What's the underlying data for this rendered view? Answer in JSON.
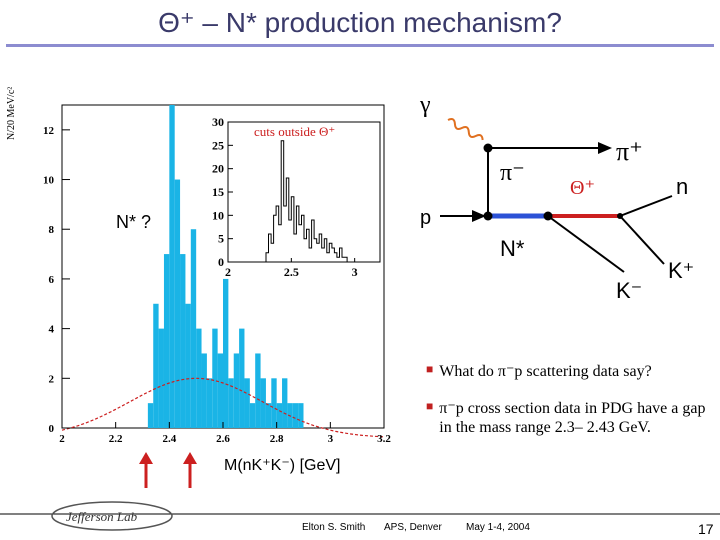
{
  "slide": {
    "title": "Θ⁺ – N* production mechanism?",
    "colors": {
      "title": "#3a3a6a",
      "rule": "#8c8cd0",
      "bars": "#1ab4e6",
      "fit": "#cc2020",
      "arrows": "#cc2020",
      "diagram_blue": "#2c52d6"
    }
  },
  "chart_data": [
    {
      "type": "bar",
      "ylabel": "N/20 MeV/c²",
      "xlabel": "M(nK⁺K⁻) [GeV]",
      "xlim": [
        2.0,
        3.2
      ],
      "ylim": [
        0,
        13
      ],
      "xticks": [
        "2",
        "2.2",
        "2.4",
        "2.6",
        "2.8",
        "3",
        "3.2"
      ],
      "yticks": [
        "0",
        "2",
        "4",
        "6",
        "8",
        "10",
        "12"
      ],
      "bin_width": 0.02,
      "x": [
        2.32,
        2.34,
        2.36,
        2.38,
        2.4,
        2.42,
        2.44,
        2.46,
        2.48,
        2.5,
        2.52,
        2.54,
        2.56,
        2.58,
        2.6,
        2.62,
        2.64,
        2.66,
        2.68,
        2.7,
        2.72,
        2.74,
        2.76,
        2.78,
        2.8,
        2.82,
        2.84,
        2.86,
        2.88
      ],
      "values": [
        1,
        5,
        4,
        7,
        13,
        10,
        7,
        5,
        8,
        4,
        3,
        2,
        4,
        3,
        6,
        2,
        3,
        4,
        2,
        1,
        3,
        2,
        1,
        2,
        1,
        2,
        1,
        1,
        1
      ],
      "annotation": "N* ?"
    },
    {
      "type": "bar",
      "style": "step",
      "annotation": "cuts outside Θ⁺",
      "xlim": [
        2.0,
        3.2
      ],
      "ylim": [
        0,
        30
      ],
      "xticks": [
        "2",
        "2.5",
        "3"
      ],
      "yticks": [
        "0",
        "5",
        "10",
        "15",
        "20",
        "25",
        "30"
      ],
      "bin_width": 0.02,
      "x": [
        2.3,
        2.32,
        2.34,
        2.36,
        2.38,
        2.4,
        2.42,
        2.44,
        2.46,
        2.48,
        2.5,
        2.52,
        2.54,
        2.56,
        2.58,
        2.6,
        2.62,
        2.64,
        2.66,
        2.68,
        2.7,
        2.72,
        2.74,
        2.76,
        2.78,
        2.8,
        2.82,
        2.84,
        2.86,
        2.88,
        2.9,
        2.92
      ],
      "values": [
        2,
        6,
        4,
        10,
        12,
        8,
        26,
        12,
        18,
        9,
        14,
        6,
        12,
        8,
        10,
        5,
        7,
        3,
        9,
        5,
        4,
        6,
        3,
        5,
        2,
        4,
        3,
        2,
        1,
        3,
        1,
        1
      ]
    }
  ],
  "diagram": {
    "gamma": "γ",
    "proton": "p",
    "pi_minus": "π⁻",
    "theta_plus": "Θ⁺",
    "pi_plus": "π⁺",
    "neutron": "n",
    "n_star": "N*",
    "k_minus": "K⁻",
    "k_plus": "K⁺"
  },
  "bullets": [
    "What do π⁻p scattering data say?",
    "π⁻p cross section data in PDG have a gap in the mass range 2.3– 2.43 GeV."
  ],
  "footer": {
    "logo": "Jefferson Lab",
    "author": "Elton S. Smith",
    "venue": "APS, Denver",
    "date": "May 1-4, 2004",
    "page": "17"
  }
}
